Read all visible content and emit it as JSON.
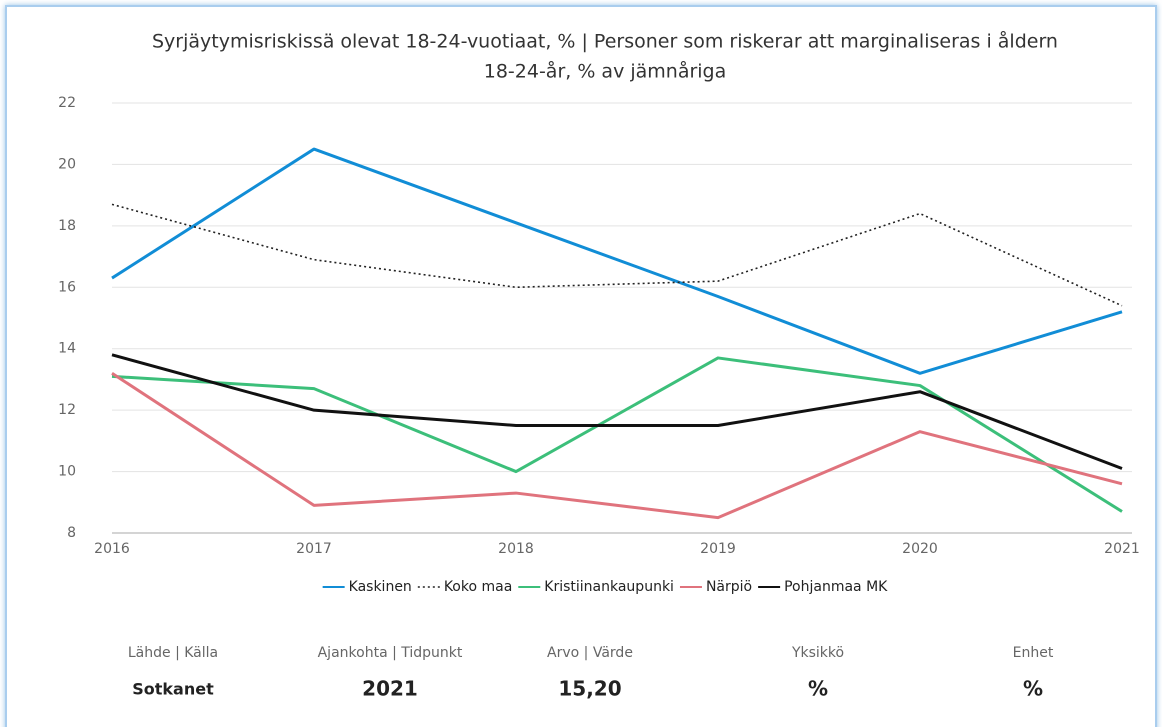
{
  "chart_data": {
    "type": "line",
    "title": [
      "Syrjäytymisriskissä olevat 18-24-vuotiaat, % | Personer som riskerar att marginaliseras i åldern",
      "18-24-år, % av jämnåriga"
    ],
    "categories": [
      "2016",
      "2017",
      "2018",
      "2019",
      "2020",
      "2021"
    ],
    "series": [
      {
        "name": "Kaskinen",
        "color": "#118dd6",
        "style": "solid",
        "values": [
          16.3,
          20.5,
          18.1,
          15.7,
          13.2,
          15.2
        ]
      },
      {
        "name": "Koko maa",
        "color": "#222222",
        "style": "dotted",
        "values": [
          18.7,
          16.9,
          16.0,
          16.2,
          18.4,
          15.4
        ]
      },
      {
        "name": "Kristiinankaupunki",
        "color": "#3cbf7a",
        "style": "solid",
        "values": [
          13.1,
          12.7,
          10.0,
          13.7,
          12.8,
          8.7
        ]
      },
      {
        "name": "Närpiö",
        "color": "#e0737d",
        "style": "solid",
        "values": [
          13.2,
          8.9,
          9.3,
          8.5,
          11.3,
          9.6
        ]
      },
      {
        "name": "Pohjanmaa MK",
        "color": "#111111",
        "style": "solid",
        "values": [
          13.8,
          12.0,
          11.5,
          11.5,
          12.6,
          10.1
        ]
      }
    ],
    "ylim": [
      8,
      22
    ],
    "yticks": [
      8,
      10,
      12,
      14,
      16,
      18,
      20,
      22
    ],
    "grid": true,
    "legend": "bottom"
  },
  "footer": {
    "columns": [
      {
        "label": "Lähde | Källa",
        "value": "Sotkanet"
      },
      {
        "label": "Ajankohta | Tidpunkt",
        "value": "2021"
      },
      {
        "label": "Arvo | Värde",
        "value": "15,20"
      },
      {
        "label": "Yksikkö",
        "value": "%"
      },
      {
        "label": "Enhet",
        "value": "%"
      }
    ]
  }
}
